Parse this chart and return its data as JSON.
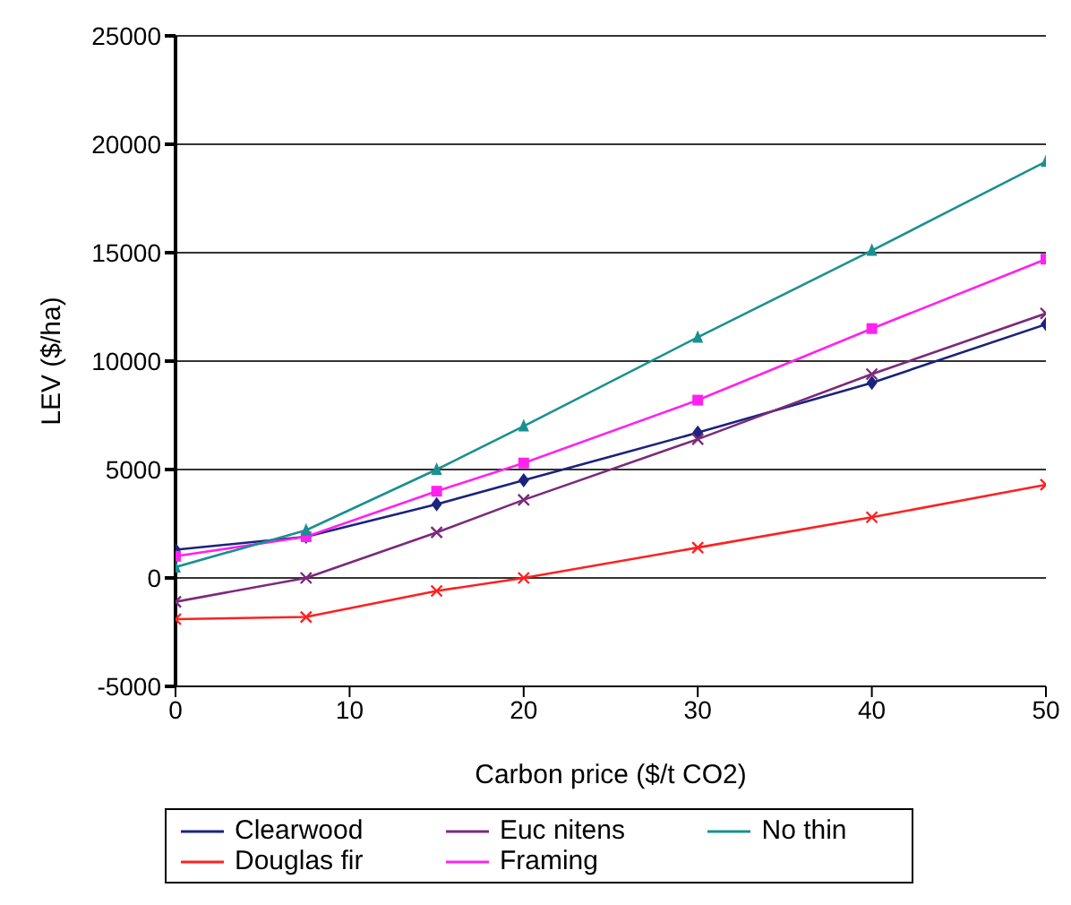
{
  "chart_data": {
    "type": "line",
    "xlabel": "Carbon price ($/t CO2)",
    "ylabel": "LEV ($/ha)",
    "x": [
      0,
      7.5,
      15,
      20,
      30,
      40,
      50
    ],
    "series": [
      {
        "name": "Clearwood",
        "color": "#1a237e",
        "marker": "diamond",
        "values": [
          1300,
          1900,
          3400,
          4500,
          6700,
          9000,
          11700
        ]
      },
      {
        "name": "Douglas fir",
        "color": "#ff2020",
        "marker": "cross",
        "values": [
          -1900,
          -1800,
          -600,
          0,
          1400,
          2800,
          4300
        ]
      },
      {
        "name": "Framing",
        "color": "#ff22ee",
        "marker": "square",
        "values": [
          1000,
          1900,
          4000,
          5300,
          8200,
          11500,
          14700
        ]
      },
      {
        "name": "Euc nitens",
        "color": "#7b2a7b",
        "marker": "cross",
        "values": [
          -1100,
          0,
          2100,
          3600,
          6400,
          9400,
          12200
        ]
      },
      {
        "name": "No thin",
        "color": "#1a9090",
        "marker": "triangle",
        "values": [
          500,
          2200,
          5000,
          7000,
          11100,
          15100,
          19200
        ]
      }
    ],
    "xlim": [
      0,
      50
    ],
    "xticks": [
      0,
      10,
      20,
      30,
      40,
      50
    ],
    "ylim": [
      -5000,
      25000
    ],
    "yticks": [
      -5000,
      0,
      5000,
      10000,
      15000,
      20000,
      25000
    ],
    "grid": "y",
    "legend": "bottom"
  }
}
